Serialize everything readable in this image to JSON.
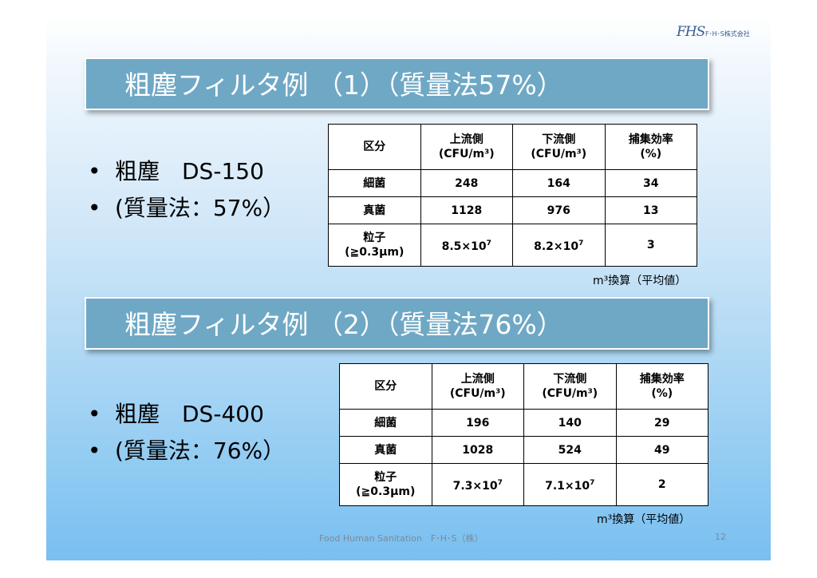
{
  "logo": {
    "mark": "FHS",
    "text": "F･H･S株式会社"
  },
  "section1": {
    "title": "粗塵フィルタ例 （1）（質量法57%）",
    "bullets": [
      "粗塵　DS-150",
      "(質量法：57%）"
    ],
    "table": {
      "header": [
        "区分",
        "上流側",
        "(CFU/m³)",
        "下流側",
        "(CFU/m³)",
        "捕集効率",
        "(%)"
      ],
      "rows": [
        {
          "label": "細菌",
          "up": "248",
          "down": "164",
          "eff": "34"
        },
        {
          "label": "真菌",
          "up": "1128",
          "down": "976",
          "eff": "13"
        }
      ],
      "particle": {
        "label1": "粒子",
        "label2": "(≧0.3μm)",
        "up_base": "8.5×10",
        "up_exp": "7",
        "down_base": "8.2×10",
        "down_exp": "7",
        "eff": "3"
      }
    },
    "note": "m³換算（平均値）"
  },
  "section2": {
    "title": "粗塵フィルタ例 （2）（質量法76%）",
    "bullets": [
      "粗塵　DS-400",
      "(質量法：76%）"
    ],
    "table": {
      "header": [
        "区分",
        "上流側",
        "(CFU/m³)",
        "下流側",
        "(CFU/m³)",
        "捕集効率",
        "(%)"
      ],
      "rows": [
        {
          "label": "細菌",
          "up": "196",
          "down": "140",
          "eff": "29"
        },
        {
          "label": "真菌",
          "up": "1028",
          "down": "524",
          "eff": "49"
        }
      ],
      "particle": {
        "label1": "粒子",
        "label2": "(≧0.3μm)",
        "up_base": "7.3×10",
        "up_exp": "7",
        "down_base": "7.1×10",
        "down_exp": "7",
        "eff": "2"
      }
    },
    "note": "m³換算（平均値）"
  },
  "footer": {
    "text": "Food Human Sanitation　F･H･S（株）",
    "page": "12"
  }
}
